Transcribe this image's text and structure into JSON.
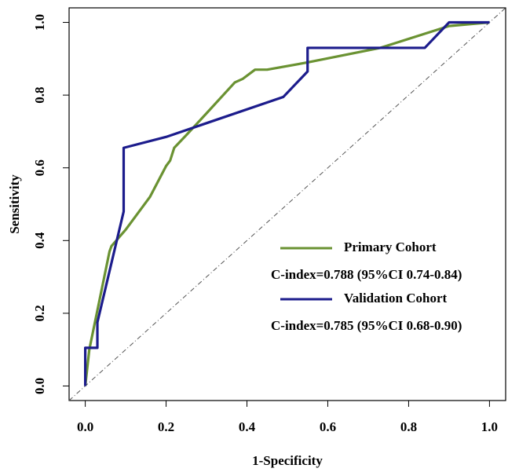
{
  "chart_data": {
    "type": "line",
    "xlabel": "1-Specificity",
    "ylabel": "Sensitivity",
    "xlim": [
      -0.04,
      1.04
    ],
    "ylim": [
      -0.04,
      1.04
    ],
    "xticks": [
      {
        "value": 0,
        "label": "0.0"
      },
      0.2,
      0.4,
      0.6,
      0.8,
      {
        "value": 1,
        "label": "1.0"
      }
    ],
    "yticks": [
      {
        "value": 0,
        "label": "0.0"
      },
      0.2,
      0.4,
      0.6,
      0.8,
      {
        "value": 1,
        "label": "1.0"
      }
    ],
    "series": [
      {
        "name": "Primary Cohort",
        "color": "#6a9232",
        "x": [
          0,
          0.01,
          0.06,
          0.065,
          0.1,
          0.16,
          0.2,
          0.21,
          0.22,
          0.25,
          0.3,
          0.37,
          0.39,
          0.42,
          0.45,
          0.55,
          0.73,
          0.9,
          1
        ],
        "values": [
          0,
          0.1,
          0.37,
          0.385,
          0.43,
          0.52,
          0.605,
          0.62,
          0.655,
          0.69,
          0.75,
          0.835,
          0.845,
          0.87,
          0.87,
          0.89,
          0.93,
          0.99,
          1
        ]
      },
      {
        "name": "Validation Cohort",
        "color": "#1c1c8c",
        "x": [
          0,
          0,
          0.03,
          0.03,
          0.095,
          0.095,
          0.2,
          0.49,
          0.55,
          0.55,
          0.73,
          0.84,
          0.9,
          1
        ],
        "values": [
          0,
          0.105,
          0.105,
          0.175,
          0.48,
          0.655,
          0.685,
          0.795,
          0.865,
          0.93,
          0.93,
          0.93,
          1,
          1
        ]
      }
    ],
    "annotations": [
      "C-index=0.788 (95%CI 0.74-0.84)",
      "C-index=0.785 (95%CI 0.68-0.90)"
    ]
  }
}
